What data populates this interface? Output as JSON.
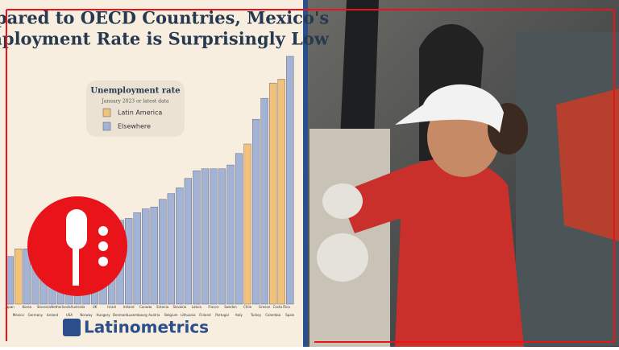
{
  "chart_data": {
    "type": "bar",
    "title_lines": [
      "mpared to OECD Countries, Mexico's",
      "nemployment Rate is Surprisingly Low"
    ],
    "legend_title": "Unemployment rate",
    "legend_subtitle": "January 2023 or latest data",
    "categories": [
      "Japan",
      "Mexico",
      "Korea",
      "Germany",
      "Slovenia",
      "Iceland",
      "Netherlands",
      "USA",
      "Australia",
      "Norway",
      "UK",
      "Hungary",
      "Israel",
      "Denmark",
      "Ireland",
      "Luxembourg",
      "Canada",
      "Austria",
      "Estonia",
      "Belgium",
      "Slovakia",
      "Lithuania",
      "Latvia",
      "Finland",
      "France",
      "Portugal",
      "Sweden",
      "Italy",
      "Chile",
      "Turkey",
      "Greece",
      "Colombia",
      "Costa Rica",
      "Spain"
    ],
    "series": [
      {
        "name": "Latin America",
        "color": "#f2c27a",
        "values": [
          null,
          2.9,
          null,
          null,
          null,
          null,
          null,
          null,
          null,
          null,
          null,
          null,
          null,
          null,
          null,
          null,
          null,
          null,
          null,
          null,
          null,
          null,
          null,
          null,
          null,
          null,
          null,
          null,
          8.4,
          null,
          null,
          11.6,
          11.8,
          null
        ]
      },
      {
        "name": "Elsewhere",
        "color": "#a3b3d6",
        "values": [
          2.5,
          null,
          2.9,
          3.0,
          3.2,
          3.4,
          3.5,
          3.5,
          3.5,
          3.6,
          3.7,
          3.9,
          4.3,
          4.4,
          4.5,
          4.8,
          5.0,
          5.1,
          5.5,
          5.8,
          6.1,
          6.6,
          7.0,
          7.1,
          7.1,
          7.1,
          7.3,
          7.9,
          null,
          9.7,
          10.8,
          null,
          null,
          13.0
        ]
      }
    ],
    "brand": "Latinometrics"
  }
}
